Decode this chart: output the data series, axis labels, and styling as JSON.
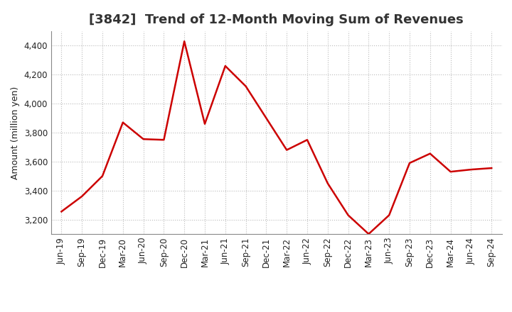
{
  "title": "[3842]  Trend of 12-Month Moving Sum of Revenues",
  "ylabel": "Amount (million yen)",
  "background_color": "#ffffff",
  "plot_background_color": "#ffffff",
  "line_color": "#cc0000",
  "line_width": 1.8,
  "grid_color": "#bbbbbb",
  "x_labels": [
    "Jun-19",
    "Sep-19",
    "Dec-19",
    "Mar-20",
    "Jun-20",
    "Sep-20",
    "Dec-20",
    "Mar-21",
    "Jun-21",
    "Sep-21",
    "Dec-21",
    "Mar-22",
    "Jun-22",
    "Sep-22",
    "Dec-22",
    "Mar-23",
    "Jun-23",
    "Sep-23",
    "Dec-23",
    "Mar-24",
    "Jun-24",
    "Sep-24"
  ],
  "y_values": [
    3255,
    3360,
    3500,
    3870,
    3755,
    3750,
    4430,
    3860,
    4260,
    4120,
    3900,
    3680,
    3750,
    3450,
    3230,
    3100,
    3230,
    3590,
    3655,
    3530,
    3545,
    3555
  ],
  "ylim_min": 3100,
  "ylim_max": 4500,
  "yticks": [
    3200,
    3400,
    3600,
    3800,
    4000,
    4200,
    4400
  ],
  "title_fontsize": 13,
  "ylabel_fontsize": 9,
  "tick_fontsize": 8.5
}
